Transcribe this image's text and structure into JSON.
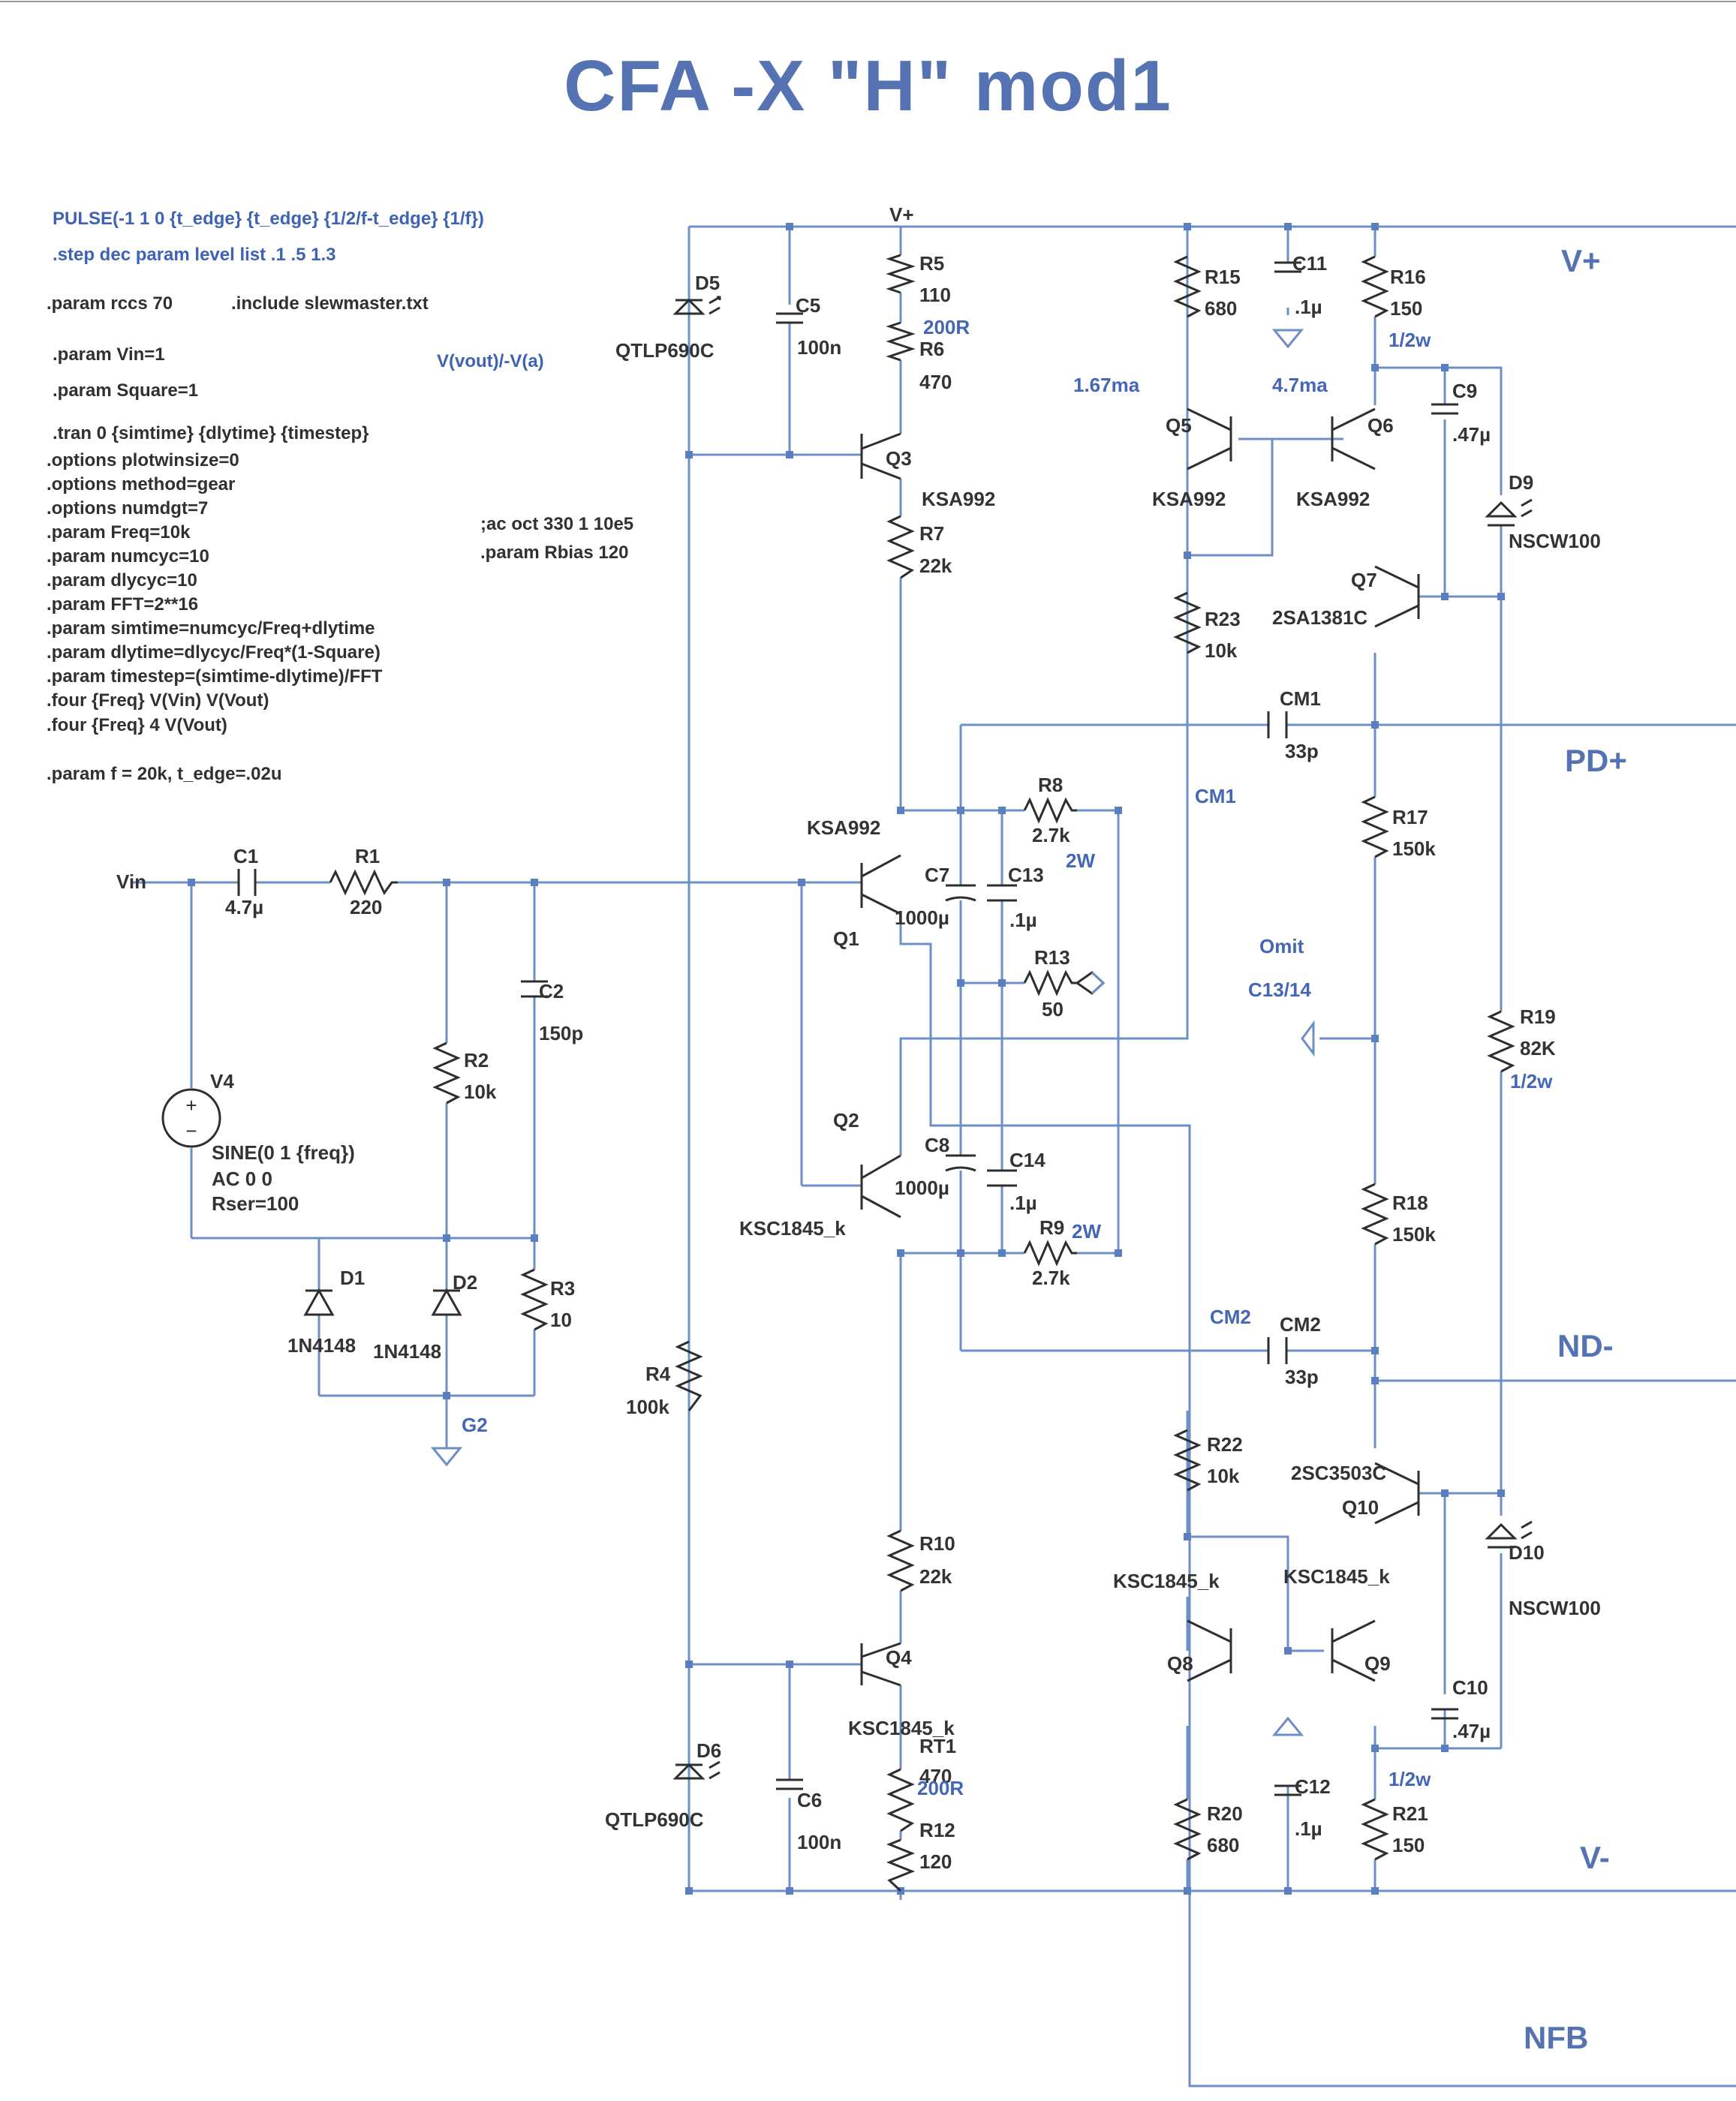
{
  "title": "CFA -X \"H\" mod1",
  "directives_blue": [
    "PULSE(-1 1 0 {t_edge} {t_edge} {1/2/f-t_edge} {1/f})",
    ".step dec param level list .1 .5 1.3"
  ],
  "directives_dark": [
    ".param rccs 70",
    ".include slewmaster.txt",
    ".param Vin=1",
    ".param Square=1",
    ".tran 0 {simtime} {dlytime} {timestep}",
    ".options plotwinsize=0",
    ".options method=gear",
    ".options numdgt=7",
    ".param Freq=10k",
    ".param numcyc=10",
    ".param dlycyc=10",
    ".param FFT=2**16",
    ".param simtime=numcyc/Freq+dlytime",
    ".param dlytime=dlycyc/Freq*(1-Square)",
    ".param timestep=(simtime-dlytime)/FFT",
    ".four {Freq}  V(Vin) V(Vout)",
    ".four {Freq} 4 V(Vout)",
    ".param f = 20k, t_edge=.02u",
    ";ac oct 330 1 10e5",
    ".param Rbias 120"
  ],
  "probe_expr": "V(vout)/-V(a)",
  "rails": {
    "vplus": "V+",
    "pdplus": "PD+",
    "ndminus": "ND-",
    "vminus": "V-",
    "nfb": "NFB",
    "vin": "Vin",
    "vplus_small": "V+",
    "g2": "G2"
  },
  "notes": {
    "i_q5": "1.67ma",
    "i_q6": "4.7ma",
    "cm1": "CM1",
    "cm2": "CM2",
    "omit1": "Omit",
    "omit2": "C13/14",
    "r6alt": "200R",
    "rt1alt": "200R",
    "r8w": "2W",
    "r9w": "2W",
    "r16w": "1/2w",
    "r19w": "1/2w",
    "r21w": "1/2w"
  },
  "components": {
    "R1": [
      "R1",
      "220"
    ],
    "R2": [
      "R2",
      "10k"
    ],
    "R3": [
      "R3",
      "10"
    ],
    "R4": [
      "R4",
      "100k"
    ],
    "R5": [
      "R5",
      "110"
    ],
    "R6": [
      "R6",
      "470"
    ],
    "R7": [
      "R7",
      "22k"
    ],
    "R8": [
      "R8",
      "2.7k"
    ],
    "R9": [
      "R9",
      "2.7k"
    ],
    "R10": [
      "R10",
      "22k"
    ],
    "R12": [
      "R12",
      "120"
    ],
    "RT1": [
      "RT1",
      "470"
    ],
    "R13": [
      "R13",
      "50"
    ],
    "R15": [
      "R15",
      "680"
    ],
    "R16": [
      "R16",
      "150"
    ],
    "R17": [
      "R17",
      "150k"
    ],
    "R18": [
      "R18",
      "150k"
    ],
    "R19": [
      "R19",
      "82K"
    ],
    "R20": [
      "R20",
      "680"
    ],
    "R21": [
      "R21",
      "150"
    ],
    "R22": [
      "R22",
      "10k"
    ],
    "R23": [
      "R23",
      "10k"
    ],
    "C1": [
      "C1",
      "4.7µ"
    ],
    "C2": [
      "C2",
      "150p"
    ],
    "C5": [
      "C5",
      "100n"
    ],
    "C6": [
      "C6",
      "100n"
    ],
    "C7": [
      "C7",
      "1000µ"
    ],
    "C8": [
      "C8",
      "1000µ"
    ],
    "C9": [
      "C9",
      ".47µ"
    ],
    "C10": [
      "C10",
      ".47µ"
    ],
    "C11": [
      "C11",
      ".1µ"
    ],
    "C12": [
      "C12",
      ".1µ"
    ],
    "C13": [
      "C13",
      ".1µ"
    ],
    "C14": [
      "C14",
      ".1µ"
    ],
    "CM1": [
      "CM1",
      "33p"
    ],
    "CM2": [
      "CM2",
      "33p"
    ],
    "D1": [
      "D1",
      "1N4148"
    ],
    "D2": [
      "D2",
      "1N4148"
    ],
    "D5": [
      "D5",
      "QTLP690C"
    ],
    "D6": [
      "D6",
      "QTLP690C"
    ],
    "D9": [
      "D9",
      "NSCW100"
    ],
    "D10": [
      "D10",
      "NSCW100"
    ],
    "Q1": [
      "Q1",
      "KSA992"
    ],
    "Q2": [
      "Q2",
      "KSC1845_k"
    ],
    "Q3": [
      "Q3",
      "KSA992"
    ],
    "Q4": [
      "Q4",
      "KSC1845_k"
    ],
    "Q5": [
      "Q5",
      "KSA992"
    ],
    "Q6": [
      "Q6",
      "KSA992"
    ],
    "Q7": [
      "Q7",
      "2SA1381C"
    ],
    "Q8": [
      "Q8",
      "KSC1845_k"
    ],
    "Q9": [
      "Q9",
      "KSC1845_k"
    ],
    "Q10": [
      "Q10",
      "2SC3503C"
    ],
    "V4": [
      "V4",
      "SINE(0 1 {freq})",
      "AC 0 0",
      "Rser=100"
    ]
  }
}
